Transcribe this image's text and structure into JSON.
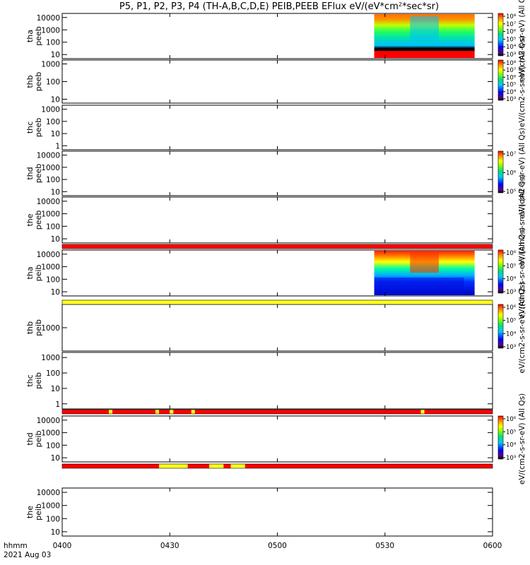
{
  "chart_data": {
    "type": "heatmap",
    "title": "P5, P1, P2, P3, P4 (TH-A,B,C,D,E) PEIB,PEEB EFlux eV/(eV*cm²*sec*sr)",
    "time_axis": {
      "label": "hhmm",
      "date": "2021 Aug 03",
      "range": [
        "04:00",
        "06:00"
      ],
      "ticks": [
        "0400",
        "0430",
        "0500",
        "0530",
        "0600"
      ]
    },
    "panels": [
      {
        "id": "tha_peeb",
        "ylabel": [
          "tha",
          "peeb"
        ],
        "yticks": [
          "10",
          "100",
          "1000",
          "10000"
        ],
        "yscale": "log",
        "data_range": [
          "05:27",
          "05:55"
        ],
        "colorbar": true,
        "colorbar_label": "eV/(cm2-s-sr-eV) (All Qs)",
        "colorbar_ticks": [
          "10³",
          "10⁴",
          "10⁵",
          "10⁶",
          "10⁷",
          "10⁸"
        ]
      },
      {
        "id": "thb_peeb",
        "ylabel": [
          "thb",
          "peeb"
        ],
        "yticks": [
          "10",
          "100",
          "1000"
        ],
        "yscale": "log",
        "data_range": null,
        "colorbar": true,
        "colorbar_label": "eV/(cm2-s-sr-eV) (All Qs)",
        "colorbar_ticks": [
          "10³",
          "10⁴",
          "10⁵",
          "10⁶",
          "10⁷",
          "10⁸"
        ]
      },
      {
        "id": "thc_peeb",
        "ylabel": [
          "thc",
          "peeb"
        ],
        "yticks": [
          "1",
          "10",
          "100",
          "1000"
        ],
        "yscale": "log",
        "data_range": null,
        "colorbar": false
      },
      {
        "id": "thd_peeb",
        "ylabel": [
          "thd",
          "peeb"
        ],
        "yticks": [
          "10",
          "100",
          "1000",
          "10000"
        ],
        "yscale": "log",
        "data_range": null,
        "colorbar": true,
        "colorbar_label": "eV/(cm2-s-sr-eV) (All Qs)",
        "colorbar_ticks": [
          "10⁵",
          "10⁶",
          "10⁷"
        ]
      },
      {
        "id": "the_peeb",
        "ylabel": [
          "the",
          "peeb"
        ],
        "yticks": [
          "10",
          "100",
          "1000",
          "10000"
        ],
        "yscale": "log",
        "data_range": null,
        "colorbar": false,
        "colorbar_label": "eV/(cm2-s-sr-eV) (All Qs)"
      },
      {
        "id": "tha_peib",
        "ylabel": [
          "tha",
          "peib"
        ],
        "yticks": [
          "10",
          "100",
          "1000",
          "10000"
        ],
        "yscale": "log",
        "data_range": [
          "05:27",
          "05:55"
        ],
        "colorbar": true,
        "colorbar_label": "eV/(cm2-s-sr-eV) (All Qs)",
        "colorbar_ticks": [
          "10³",
          "10⁴",
          "10⁵",
          "10⁶"
        ]
      },
      {
        "id": "thb_peib",
        "ylabel": [
          "thb",
          "peib"
        ],
        "yticks": [
          "1000"
        ],
        "yscale": "log",
        "data_range": null,
        "colorbar": true,
        "colorbar_label": "eV/(cm2-s-sr-eV) (All Qs)",
        "colorbar_ticks": [
          "10³",
          "10⁴",
          "10⁵",
          "10⁶"
        ]
      },
      {
        "id": "thc_peib",
        "ylabel": [
          "thc",
          "peib"
        ],
        "yticks": [
          "1",
          "10",
          "100",
          "1000"
        ],
        "yscale": "log",
        "data_range": null,
        "colorbar": false
      },
      {
        "id": "thd_peib",
        "ylabel": [
          "thd",
          "peib"
        ],
        "yticks": [
          "10",
          "100",
          "1000",
          "10000"
        ],
        "yscale": "log",
        "data_range": null,
        "colorbar": true,
        "colorbar_label": "eV/(cm2-s-sr-eV) (All Qs)",
        "colorbar_ticks": [
          "10³",
          "10⁴",
          "10⁵",
          "10⁶"
        ]
      },
      {
        "id": "the_peib",
        "ylabel": [
          "the",
          "peib"
        ],
        "yticks": [
          "10",
          "100",
          "1000",
          "10000"
        ],
        "yscale": "log",
        "data_range": null,
        "colorbar": false
      }
    ],
    "status_bars": [
      {
        "after_panel": "the_peeb",
        "segments": [
          {
            "from": "04:00",
            "to": "06:00",
            "color": "red"
          }
        ]
      },
      {
        "after_panel": "tha_peib",
        "segments": [
          {
            "from": "04:00",
            "to": "06:00",
            "color": "yellow"
          }
        ]
      },
      {
        "after_panel": "thc_peib",
        "segments": [
          {
            "from": "04:00",
            "to": "06:00",
            "color": "red"
          },
          {
            "from": "04:13",
            "to": "04:14",
            "color": "yellow"
          },
          {
            "from": "04:26",
            "to": "04:27",
            "color": "yellow"
          },
          {
            "from": "04:30",
            "to": "04:31",
            "color": "yellow"
          },
          {
            "from": "04:36",
            "to": "04:37",
            "color": "yellow"
          },
          {
            "from": "05:40",
            "to": "05:41",
            "color": "yellow"
          }
        ]
      },
      {
        "after_panel": "thd_peib",
        "segments": [
          {
            "from": "04:00",
            "to": "06:00",
            "color": "red"
          },
          {
            "from": "04:27",
            "to": "04:35",
            "color": "yellow"
          },
          {
            "from": "04:41",
            "to": "04:45",
            "color": "yellow"
          },
          {
            "from": "04:47",
            "to": "04:51",
            "color": "yellow"
          }
        ]
      }
    ]
  }
}
